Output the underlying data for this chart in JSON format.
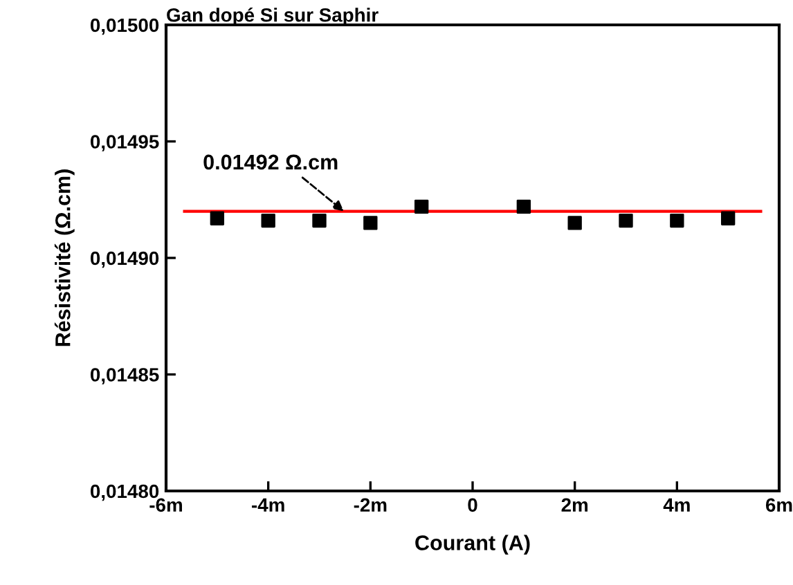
{
  "chart_data": {
    "type": "scatter",
    "title": "Gan dopé Si sur Saphir",
    "xlabel": "Courant (A)",
    "ylabel": "Résistivité (Ω.cm)",
    "x": [
      -5,
      -4,
      -3,
      -2,
      -1,
      1,
      2,
      3,
      4,
      5
    ],
    "series": [
      {
        "color": "#000000",
        "values": [
          0.014917,
          0.014916,
          0.014916,
          0.014915,
          0.014922,
          0.014922,
          0.014915,
          0.014916,
          0.014916,
          0.014917
        ]
      }
    ],
    "marker": "square",
    "grid": false,
    "legend": false,
    "xlim": [
      -6,
      6
    ],
    "xticks": [
      {
        "value": -6,
        "label": "-6m"
      },
      {
        "value": -4,
        "label": "-4m"
      },
      {
        "value": -2,
        "label": "-2m"
      },
      0,
      {
        "value": 2,
        "label": "2m"
      },
      {
        "value": 4,
        "label": "4m"
      },
      {
        "value": 6,
        "label": "6m"
      }
    ],
    "ylim": [
      0.0148,
      0.015
    ],
    "yticks": [
      {
        "value": 0.0148,
        "label": "0,01480"
      },
      {
        "value": 0.01485,
        "label": "0,01485"
      },
      {
        "value": 0.0149,
        "label": "0,01490"
      },
      {
        "value": 0.01495,
        "label": "0,01495"
      },
      {
        "value": 0.015,
        "label": "0,01500"
      }
    ],
    "ref_lines": [
      {
        "axis": "y",
        "value": 0.01492,
        "label": "0.01492 Ω.cm",
        "color": "#ff0000",
        "line_style": "solid"
      }
    ]
  }
}
